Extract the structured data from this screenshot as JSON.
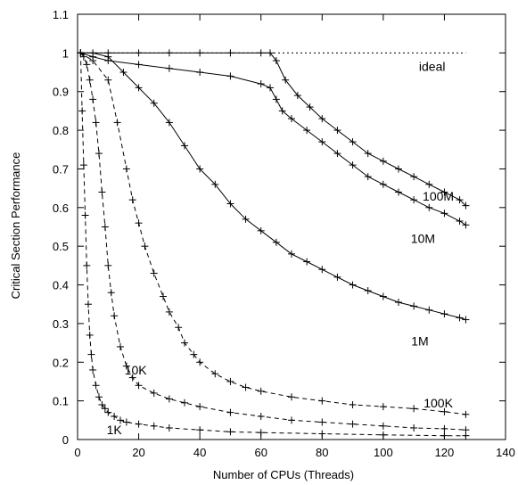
{
  "chart_data": {
    "type": "line",
    "xlabel": "Number of CPUs (Threads)",
    "ylabel": "Critical Section Performance",
    "xlim": [
      0,
      140
    ],
    "ylim": [
      0,
      1.1
    ],
    "xticks": [
      "0",
      "20",
      "40",
      "60",
      "80",
      "100",
      "120",
      "140"
    ],
    "yticks": [
      "0",
      "0.1",
      "0.2",
      "0.3",
      "0.4",
      "0.5",
      "0.6",
      "0.7",
      "0.8",
      "0.9",
      "1",
      "1.1"
    ],
    "grid": false,
    "legend": "none",
    "ideal": {
      "label": "ideal",
      "y": 1.0,
      "x": [
        0,
        127
      ]
    },
    "series": [
      {
        "name": "100M",
        "line": "solid",
        "x": [
          1,
          10,
          20,
          30,
          40,
          50,
          60,
          63,
          65,
          68,
          72,
          76,
          80,
          85,
          90,
          95,
          100,
          105,
          110,
          115,
          120,
          125,
          127
        ],
        "y": [
          1.0,
          1.0,
          1.0,
          1.0,
          1.0,
          1.0,
          1.0,
          1.0,
          0.98,
          0.93,
          0.89,
          0.86,
          0.83,
          0.8,
          0.77,
          0.74,
          0.72,
          0.7,
          0.68,
          0.66,
          0.64,
          0.62,
          0.605
        ]
      },
      {
        "name": "10M",
        "line": "solid",
        "x": [
          1,
          5,
          10,
          20,
          30,
          40,
          50,
          60,
          63,
          65,
          67,
          70,
          75,
          80,
          85,
          90,
          95,
          100,
          105,
          110,
          115,
          120,
          125,
          127
        ],
        "y": [
          1.0,
          0.99,
          0.98,
          0.97,
          0.96,
          0.95,
          0.94,
          0.92,
          0.91,
          0.88,
          0.85,
          0.83,
          0.8,
          0.77,
          0.74,
          0.71,
          0.68,
          0.66,
          0.64,
          0.62,
          0.6,
          0.585,
          0.565,
          0.555
        ]
      },
      {
        "name": "1M",
        "line": "solid",
        "x": [
          1,
          5,
          10,
          15,
          20,
          25,
          30,
          35,
          40,
          45,
          50,
          55,
          60,
          65,
          70,
          75,
          80,
          85,
          90,
          95,
          100,
          105,
          110,
          115,
          120,
          125,
          127
        ],
        "y": [
          1.0,
          1.0,
          0.99,
          0.95,
          0.91,
          0.87,
          0.82,
          0.76,
          0.7,
          0.66,
          0.61,
          0.57,
          0.54,
          0.51,
          0.48,
          0.46,
          0.44,
          0.42,
          0.4,
          0.385,
          0.37,
          0.355,
          0.345,
          0.335,
          0.325,
          0.315,
          0.31
        ]
      },
      {
        "name": "100K",
        "line": "dashed",
        "x": [
          1,
          5,
          10,
          13,
          16,
          18,
          20,
          22,
          25,
          28,
          30,
          33,
          35,
          38,
          40,
          45,
          50,
          55,
          60,
          70,
          80,
          90,
          100,
          110,
          120,
          127
        ],
        "y": [
          1.0,
          0.98,
          0.93,
          0.82,
          0.7,
          0.62,
          0.56,
          0.5,
          0.43,
          0.37,
          0.33,
          0.29,
          0.25,
          0.22,
          0.2,
          0.17,
          0.15,
          0.135,
          0.125,
          0.11,
          0.1,
          0.09,
          0.085,
          0.08,
          0.072,
          0.065
        ]
      },
      {
        "name": "10K",
        "line": "dashed",
        "x": [
          1,
          2,
          3,
          4,
          5,
          6,
          7,
          8,
          9,
          10,
          11,
          12,
          14,
          16,
          18,
          20,
          25,
          30,
          35,
          40,
          50,
          60,
          70,
          80,
          90,
          100,
          110,
          120,
          127
        ],
        "y": [
          1.0,
          0.99,
          0.97,
          0.93,
          0.88,
          0.82,
          0.74,
          0.64,
          0.55,
          0.45,
          0.38,
          0.32,
          0.24,
          0.19,
          0.16,
          0.14,
          0.12,
          0.105,
          0.095,
          0.085,
          0.07,
          0.06,
          0.05,
          0.045,
          0.04,
          0.035,
          0.03,
          0.028,
          0.025
        ]
      },
      {
        "name": "1K",
        "line": "dashed",
        "x": [
          1,
          1.5,
          2,
          2.5,
          3,
          3.5,
          4,
          4.5,
          5,
          6,
          7,
          8,
          9,
          10,
          12,
          14,
          16,
          20,
          25,
          30,
          40,
          50,
          60,
          80,
          100,
          120,
          127
        ],
        "y": [
          1.0,
          0.85,
          0.71,
          0.58,
          0.45,
          0.35,
          0.27,
          0.22,
          0.18,
          0.14,
          0.11,
          0.09,
          0.08,
          0.07,
          0.06,
          0.05,
          0.045,
          0.04,
          0.035,
          0.03,
          0.025,
          0.02,
          0.018,
          0.015,
          0.012,
          0.01,
          0.01
        ]
      }
    ],
    "annotations": [
      {
        "text": "ideal",
        "x": 116,
        "y": 0.965
      },
      {
        "text": "100M",
        "x": 118,
        "y": 0.63
      },
      {
        "text": "10M",
        "x": 113,
        "y": 0.52
      },
      {
        "text": "1M",
        "x": 112,
        "y": 0.255
      },
      {
        "text": "100K",
        "x": 118,
        "y": 0.095
      },
      {
        "text": "10K",
        "x": 19,
        "y": 0.18
      },
      {
        "text": "1K",
        "x": 12,
        "y": 0.025
      }
    ]
  }
}
